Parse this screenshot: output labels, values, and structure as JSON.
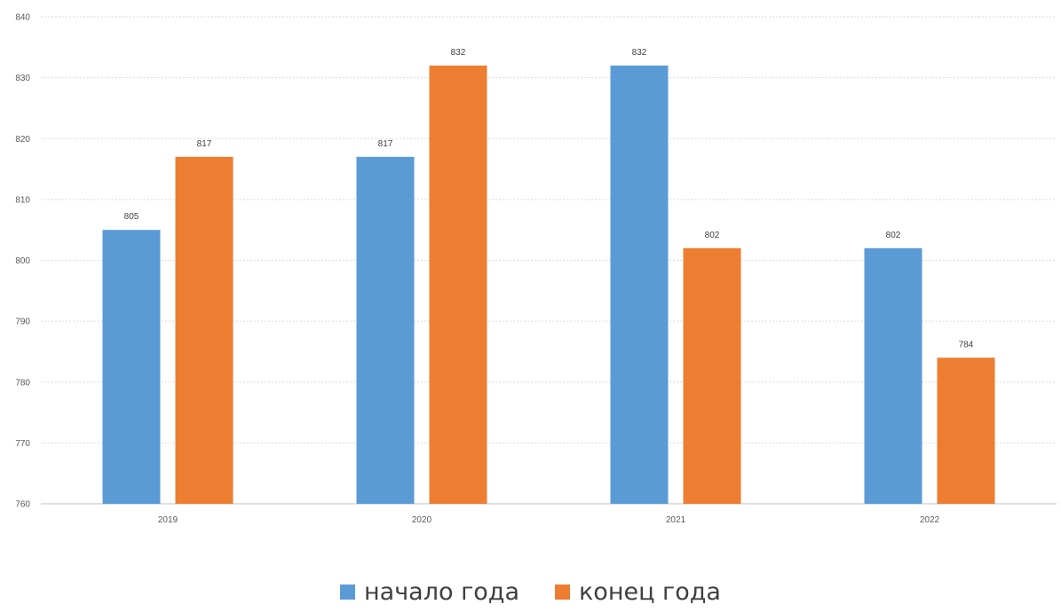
{
  "chart_data": {
    "type": "bar",
    "categories": [
      "2019",
      "2020",
      "2021",
      "2022"
    ],
    "series": [
      {
        "name": "начало года",
        "color": "#5B9BD5",
        "values": [
          805,
          817,
          832,
          802
        ]
      },
      {
        "name": "конец года",
        "color": "#ED7D31",
        "values": [
          817,
          832,
          802,
          784
        ]
      }
    ],
    "ylim": [
      760,
      840
    ],
    "yticks": [
      "760",
      "770",
      "780",
      "790",
      "800",
      "810",
      "820",
      "830",
      "840"
    ],
    "data_labels": [
      [
        "805",
        "817",
        "832",
        "802"
      ],
      [
        "817",
        "832",
        "802",
        "784"
      ]
    ],
    "grid": true,
    "legend_position": "bottom"
  }
}
